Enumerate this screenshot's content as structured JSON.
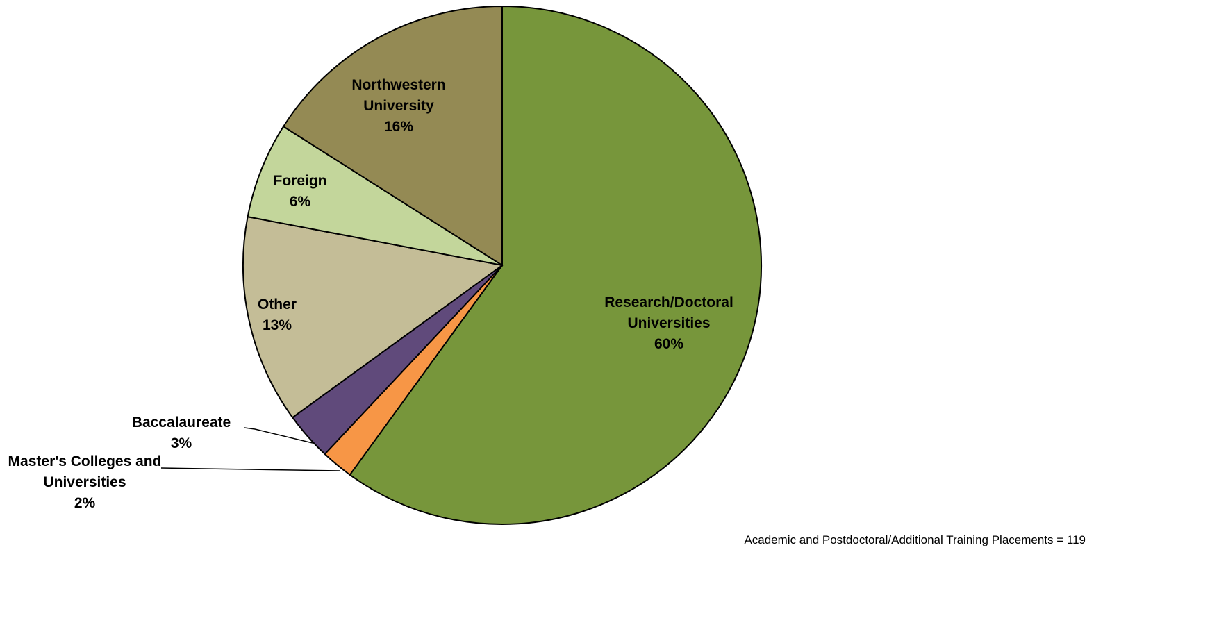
{
  "chart_data": {
    "type": "pie",
    "categories": [
      "Research/Doctoral Universities",
      "Master's Colleges and Universities",
      "Baccalaureate",
      "Other",
      "Foreign",
      "Northwestern University"
    ],
    "values": [
      60,
      2,
      3,
      13,
      6,
      16
    ],
    "value_labels": [
      "60%",
      "2%",
      "3%",
      "13%",
      "6%",
      "16%"
    ],
    "colors": [
      "#77963b",
      "#f79646",
      "#604a7b",
      "#c4bd97",
      "#c3d69b",
      "#948a54"
    ],
    "annotation": "Academic and Postdoctoral/Additional Training Placements = 119"
  }
}
